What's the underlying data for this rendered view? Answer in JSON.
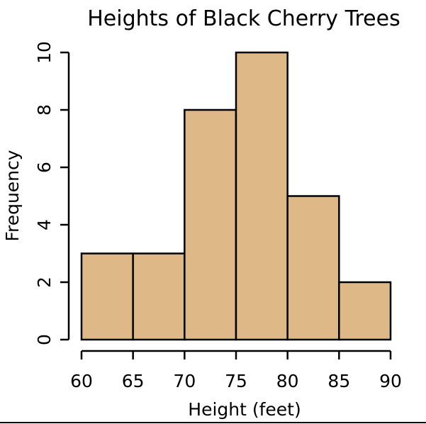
{
  "chart_data": {
    "type": "bar",
    "title": "Heights of Black Cherry Trees",
    "xlabel": "Height (feet)",
    "ylabel": "Frequency",
    "bins": [
      [
        60,
        65
      ],
      [
        65,
        70
      ],
      [
        70,
        75
      ],
      [
        75,
        80
      ],
      [
        80,
        85
      ],
      [
        85,
        90
      ]
    ],
    "values": [
      3,
      3,
      8,
      10,
      5,
      2
    ],
    "xlim": [
      60,
      90
    ],
    "ylim": [
      0,
      10
    ],
    "xticks": [
      60,
      65,
      70,
      75,
      80,
      85,
      90
    ],
    "yticks": [
      0,
      2,
      4,
      6,
      8,
      10
    ],
    "bar_color": "#deb887",
    "edge_color": "#000000",
    "grid": false
  }
}
